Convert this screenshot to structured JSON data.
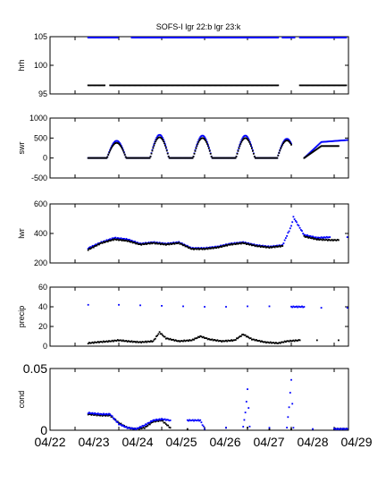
{
  "title": "SOFS-I  lgr 22:b lgr 23:k",
  "colors": {
    "series_b": "#0000ff",
    "series_k": "#000000",
    "axis": "#000000"
  },
  "legend": {
    "series_b_label": "lgr 22",
    "series_k_label": "lgr 23"
  },
  "chart_data": [
    {
      "type": "scatter",
      "ylabel": "hrh",
      "ylim": [
        95,
        105
      ],
      "yticks": [
        "95",
        "100",
        "105"
      ],
      "xlim": [
        0,
        7
      ],
      "series": [
        {
          "color": "blue",
          "segments": [
            [
              0.3,
              1.0,
              104.9,
              104.9
            ],
            [
              1.3,
              4.7,
              104.9,
              104.9
            ],
            [
              4.8,
              5.1,
              104.9,
              104.9
            ],
            [
              5.2,
              6.3,
              104.9,
              104.9
            ]
          ]
        },
        {
          "color": "black",
          "segments": [
            [
              0.3,
              0.7,
              96.5,
              96.5
            ],
            [
              0.8,
              4.7,
              96.5,
              96.5
            ],
            [
              5.2,
              6.3,
              96.5,
              96.5
            ]
          ]
        }
      ]
    },
    {
      "type": "scatter",
      "ylabel": "swr",
      "ylim": [
        -500,
        1000
      ],
      "yticks": [
        "-500",
        "0",
        "500",
        "1000"
      ],
      "xlim": [
        0,
        7
      ],
      "series": [
        {
          "color": "blue",
          "kind": "diurnal",
          "start": 0.3,
          "end": 5.0,
          "peaks": [
            [
              0.95,
              430
            ],
            [
              1.95,
              580
            ],
            [
              2.95,
              560
            ],
            [
              3.95,
              560
            ],
            [
              4.9,
              480
            ]
          ],
          "tail": [
            [
              5.3,
              0
            ],
            [
              5.7,
              400
            ],
            [
              6.3,
              450
            ]
          ]
        },
        {
          "color": "black",
          "kind": "diurnal",
          "start": 0.3,
          "end": 5.0,
          "peaks": [
            [
              0.95,
              380
            ],
            [
              1.95,
              520
            ],
            [
              2.95,
              500
            ],
            [
              3.95,
              500
            ],
            [
              4.9,
              440
            ]
          ],
          "tail": [
            [
              5.3,
              0
            ],
            [
              5.7,
              300
            ],
            [
              6.1,
              300
            ]
          ]
        }
      ]
    },
    {
      "type": "scatter",
      "ylabel": "lwr",
      "ylim": [
        200,
        600
      ],
      "yticks": [
        "200",
        "400",
        "600"
      ],
      "xlim": [
        0,
        7
      ],
      "series": [
        {
          "color": "blue",
          "points": [
            [
              0.3,
              300
            ],
            [
              0.6,
              340
            ],
            [
              0.9,
              370
            ],
            [
              1.2,
              360
            ],
            [
              1.5,
              330
            ],
            [
              1.8,
              340
            ],
            [
              2.1,
              330
            ],
            [
              2.4,
              340
            ],
            [
              2.7,
              300
            ],
            [
              3.0,
              300
            ],
            [
              3.3,
              310
            ],
            [
              3.6,
              330
            ],
            [
              3.9,
              340
            ],
            [
              4.2,
              320
            ],
            [
              4.5,
              310
            ],
            [
              4.8,
              320
            ],
            [
              5.0,
              450
            ],
            [
              5.05,
              510
            ],
            [
              5.3,
              390
            ],
            [
              5.6,
              370
            ],
            [
              5.9,
              375
            ],
            [
              6.3,
              375
            ]
          ]
        },
        {
          "color": "black",
          "points": [
            [
              0.3,
              290
            ],
            [
              0.6,
              335
            ],
            [
              0.9,
              360
            ],
            [
              1.2,
              350
            ],
            [
              1.5,
              325
            ],
            [
              1.8,
              335
            ],
            [
              2.1,
              325
            ],
            [
              2.4,
              335
            ],
            [
              2.7,
              295
            ],
            [
              3.0,
              295
            ],
            [
              3.3,
              305
            ],
            [
              3.6,
              325
            ],
            [
              3.9,
              335
            ],
            [
              4.2,
              315
            ],
            [
              4.5,
              305
            ],
            [
              4.8,
              315
            ],
            [
              5.3,
              380
            ],
            [
              5.6,
              360
            ],
            [
              5.9,
              355
            ],
            [
              6.1,
              355
            ]
          ]
        }
      ]
    },
    {
      "type": "scatter",
      "ylabel": "precip",
      "ylim": [
        0,
        60
      ],
      "yticks": [
        "0",
        "20",
        "40",
        "60"
      ],
      "xlim": [
        0,
        7
      ],
      "series": [
        {
          "color": "blue",
          "points": [
            [
              0.3,
              42
            ],
            [
              1.0,
              42
            ],
            [
              1.5,
              41.5
            ],
            [
              2.0,
              41
            ],
            [
              2.5,
              40.5
            ],
            [
              3.0,
              40
            ],
            [
              3.5,
              40
            ],
            [
              4.0,
              40.5
            ],
            [
              4.5,
              40.5
            ],
            [
              5.0,
              40
            ],
            [
              5.3,
              40
            ],
            [
              5.7,
              39
            ],
            [
              6.3,
              39
            ]
          ]
        },
        {
          "color": "black",
          "points": [
            [
              0.3,
              3
            ],
            [
              0.5,
              4
            ],
            [
              0.8,
              5
            ],
            [
              1.0,
              6
            ],
            [
              1.2,
              5
            ],
            [
              1.5,
              4
            ],
            [
              1.8,
              5
            ],
            [
              1.95,
              14
            ],
            [
              2.1,
              8
            ],
            [
              2.4,
              5
            ],
            [
              2.7,
              6
            ],
            [
              2.9,
              10
            ],
            [
              3.1,
              7
            ],
            [
              3.4,
              5
            ],
            [
              3.7,
              6
            ],
            [
              3.9,
              12
            ],
            [
              4.1,
              7
            ],
            [
              4.4,
              4
            ],
            [
              4.7,
              3
            ],
            [
              4.9,
              5
            ],
            [
              5.2,
              6
            ],
            [
              5.6,
              6
            ],
            [
              6.1,
              6
            ]
          ]
        }
      ]
    },
    {
      "type": "scatter",
      "ylabel": "cond",
      "ylim": [
        0,
        0.05
      ],
      "yticks": [
        "0",
        "0.05"
      ],
      "xticks": [
        "04/22",
        "04/23",
        "04/24",
        "04/25",
        "04/26",
        "04/27",
        "04/28",
        "04/29"
      ],
      "xlim": [
        0,
        7
      ],
      "series": [
        {
          "color": "black",
          "points": [
            [
              0.3,
              0.013
            ],
            [
              0.6,
              0.012
            ],
            [
              0.8,
              0.012
            ],
            [
              1.0,
              0.006
            ],
            [
              1.2,
              0.002
            ],
            [
              1.4,
              0.001
            ],
            [
              1.6,
              0.002
            ],
            [
              1.8,
              0.007
            ],
            [
              2.0,
              0.008
            ],
            [
              2.2,
              0.002
            ],
            [
              2.6,
              0.001
            ],
            [
              3.0,
              0.001
            ],
            [
              3.5,
              0.002
            ],
            [
              4.0,
              0.002
            ],
            [
              4.5,
              0.001
            ],
            [
              5.0,
              0.001
            ],
            [
              6.0,
              0.001
            ],
            [
              6.3,
              0.001
            ]
          ]
        },
        {
          "color": "blue",
          "points": [
            [
              0.3,
              0.014
            ],
            [
              0.6,
              0.013
            ],
            [
              0.8,
              0.013
            ],
            [
              1.0,
              0.005
            ],
            [
              1.2,
              0.002
            ],
            [
              1.4,
              0.001
            ],
            [
              1.6,
              0.004
            ],
            [
              1.8,
              0.008
            ],
            [
              2.0,
              0.009
            ],
            [
              2.2,
              0.008
            ],
            [
              2.6,
              0.008
            ],
            [
              2.9,
              0.008
            ],
            [
              3.0,
              0.001
            ],
            [
              3.5,
              0.002
            ],
            [
              3.9,
              0.003
            ],
            [
              3.95,
              0.014
            ],
            [
              4.0,
              0.033
            ],
            [
              4.05,
              0.003
            ],
            [
              4.5,
              0.002
            ],
            [
              4.9,
              0.002
            ],
            [
              4.95,
              0.019
            ],
            [
              5.0,
              0.041
            ],
            [
              5.05,
              0.002
            ],
            [
              5.5,
              0.001
            ],
            [
              6.0,
              0.001
            ],
            [
              6.3,
              0.001
            ]
          ]
        }
      ]
    }
  ]
}
